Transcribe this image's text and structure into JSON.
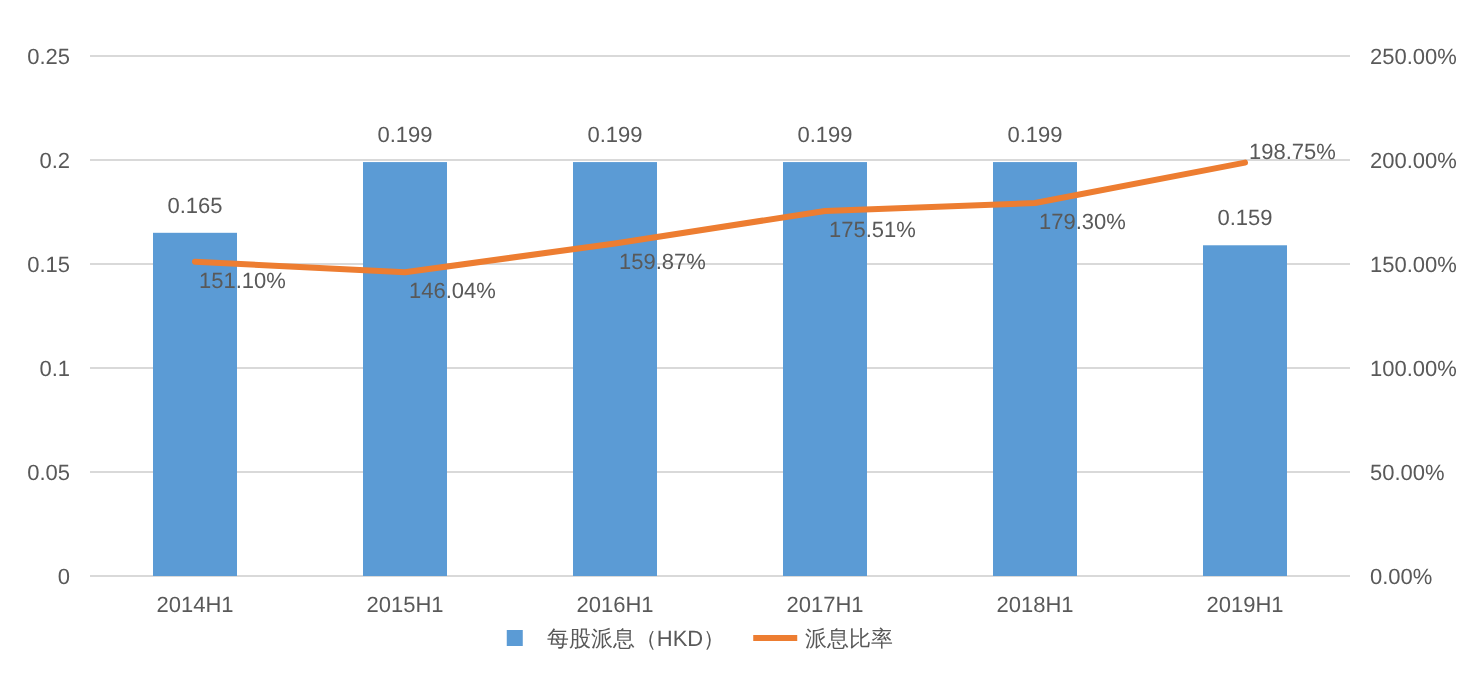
{
  "chart_data": {
    "type": "bar",
    "categories": [
      "2014H1",
      "2015H1",
      "2016H1",
      "2017H1",
      "2018H1",
      "2019H1"
    ],
    "series": [
      {
        "name": "每股派息（HKD）",
        "color": "#5b9bd5",
        "values": [
          0.165,
          0.199,
          0.199,
          0.199,
          0.199,
          0.159
        ],
        "value_labels": [
          "0.165",
          "0.199",
          "0.199",
          "0.199",
          "0.199",
          "0.159"
        ]
      },
      {
        "name": "派息比率",
        "type": "line",
        "axis": "y2",
        "color": "#ed7d31",
        "values": [
          151.1,
          146.04,
          159.87,
          175.51,
          179.3,
          198.75
        ],
        "value_labels": [
          "151.10%",
          "146.04%",
          "159.87%",
          "175.51%",
          "179.30%",
          "198.75%"
        ]
      }
    ],
    "ylim": [
      0,
      0.25
    ],
    "yticks": [
      0,
      0.05,
      0.1,
      0.15,
      0.2,
      0.25
    ],
    "y2lim": [
      0,
      250
    ],
    "y2ticks": [
      {
        "value": 0,
        "label": "0.00%"
      },
      {
        "value": 50,
        "label": "50.00%"
      },
      {
        "value": 100,
        "label": "100.00%"
      },
      {
        "value": 150,
        "label": "150.00%"
      },
      {
        "value": 200,
        "label": "200.00%"
      },
      {
        "value": 250,
        "label": "250.00%"
      }
    ],
    "grid": "y",
    "legend": "bottom",
    "marker": "none",
    "line_style": "solid"
  }
}
